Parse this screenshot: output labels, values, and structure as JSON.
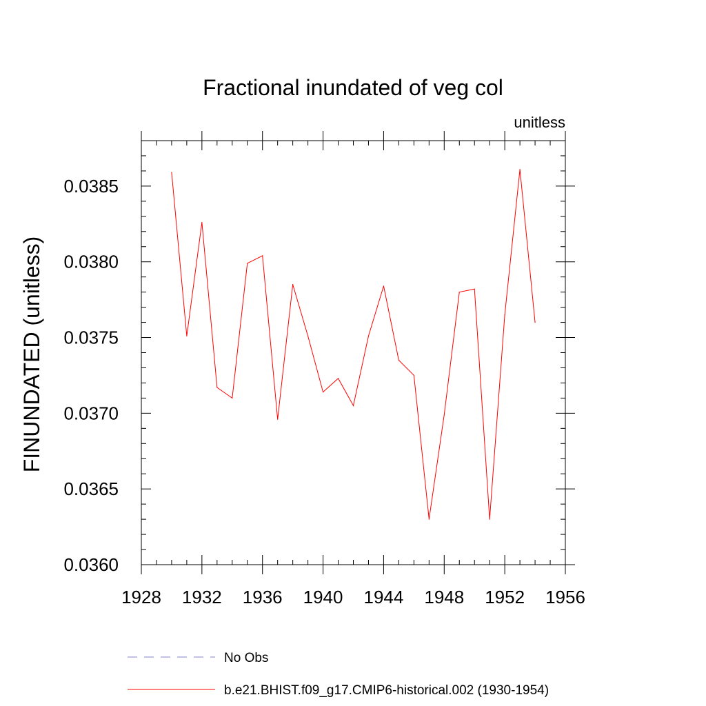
{
  "chart_data": {
    "type": "line",
    "title": "Fractional inundated of veg col",
    "units_label": "unitless",
    "ylabel": "FINUNDATED  (unitless)",
    "xlabel": "",
    "xlim": [
      1928,
      1956
    ],
    "ylim": [
      0.036,
      0.0388
    ],
    "x_ticks": [
      1928,
      1932,
      1936,
      1940,
      1944,
      1948,
      1952,
      1956
    ],
    "x_tick_labels": [
      "1928",
      "1932",
      "1936",
      "1940",
      "1944",
      "1948",
      "1952",
      "1956"
    ],
    "y_ticks": [
      0.036,
      0.0365,
      0.037,
      0.0375,
      0.038,
      0.0385
    ],
    "y_tick_labels": [
      "0.0360",
      "0.0365",
      "0.0370",
      "0.0375",
      "0.0380",
      "0.0385"
    ],
    "grid": false,
    "legend_position": "bottom",
    "series": [
      {
        "name": "No Obs",
        "color": "#8080c8",
        "style": "dashed",
        "x": [],
        "values": []
      },
      {
        "name": "b.e21.BHIST.f09_g17.CMIP6-historical.002 (1930-1954)",
        "color": "#ff0000",
        "style": "solid",
        "x": [
          1930,
          1931,
          1932,
          1933,
          1934,
          1935,
          1936,
          1937,
          1938,
          1939,
          1940,
          1941,
          1942,
          1943,
          1944,
          1945,
          1946,
          1947,
          1948,
          1949,
          1950,
          1951,
          1952,
          1953,
          1954
        ],
        "values": [
          0.03859,
          0.03751,
          0.03826,
          0.03717,
          0.0371,
          0.03799,
          0.03804,
          0.03696,
          0.03785,
          0.03751,
          0.03714,
          0.03723,
          0.03705,
          0.03751,
          0.03784,
          0.03735,
          0.03725,
          0.0363,
          0.03699,
          0.0378,
          0.03782,
          0.0363,
          0.03765,
          0.03861,
          0.0376
        ]
      }
    ]
  }
}
